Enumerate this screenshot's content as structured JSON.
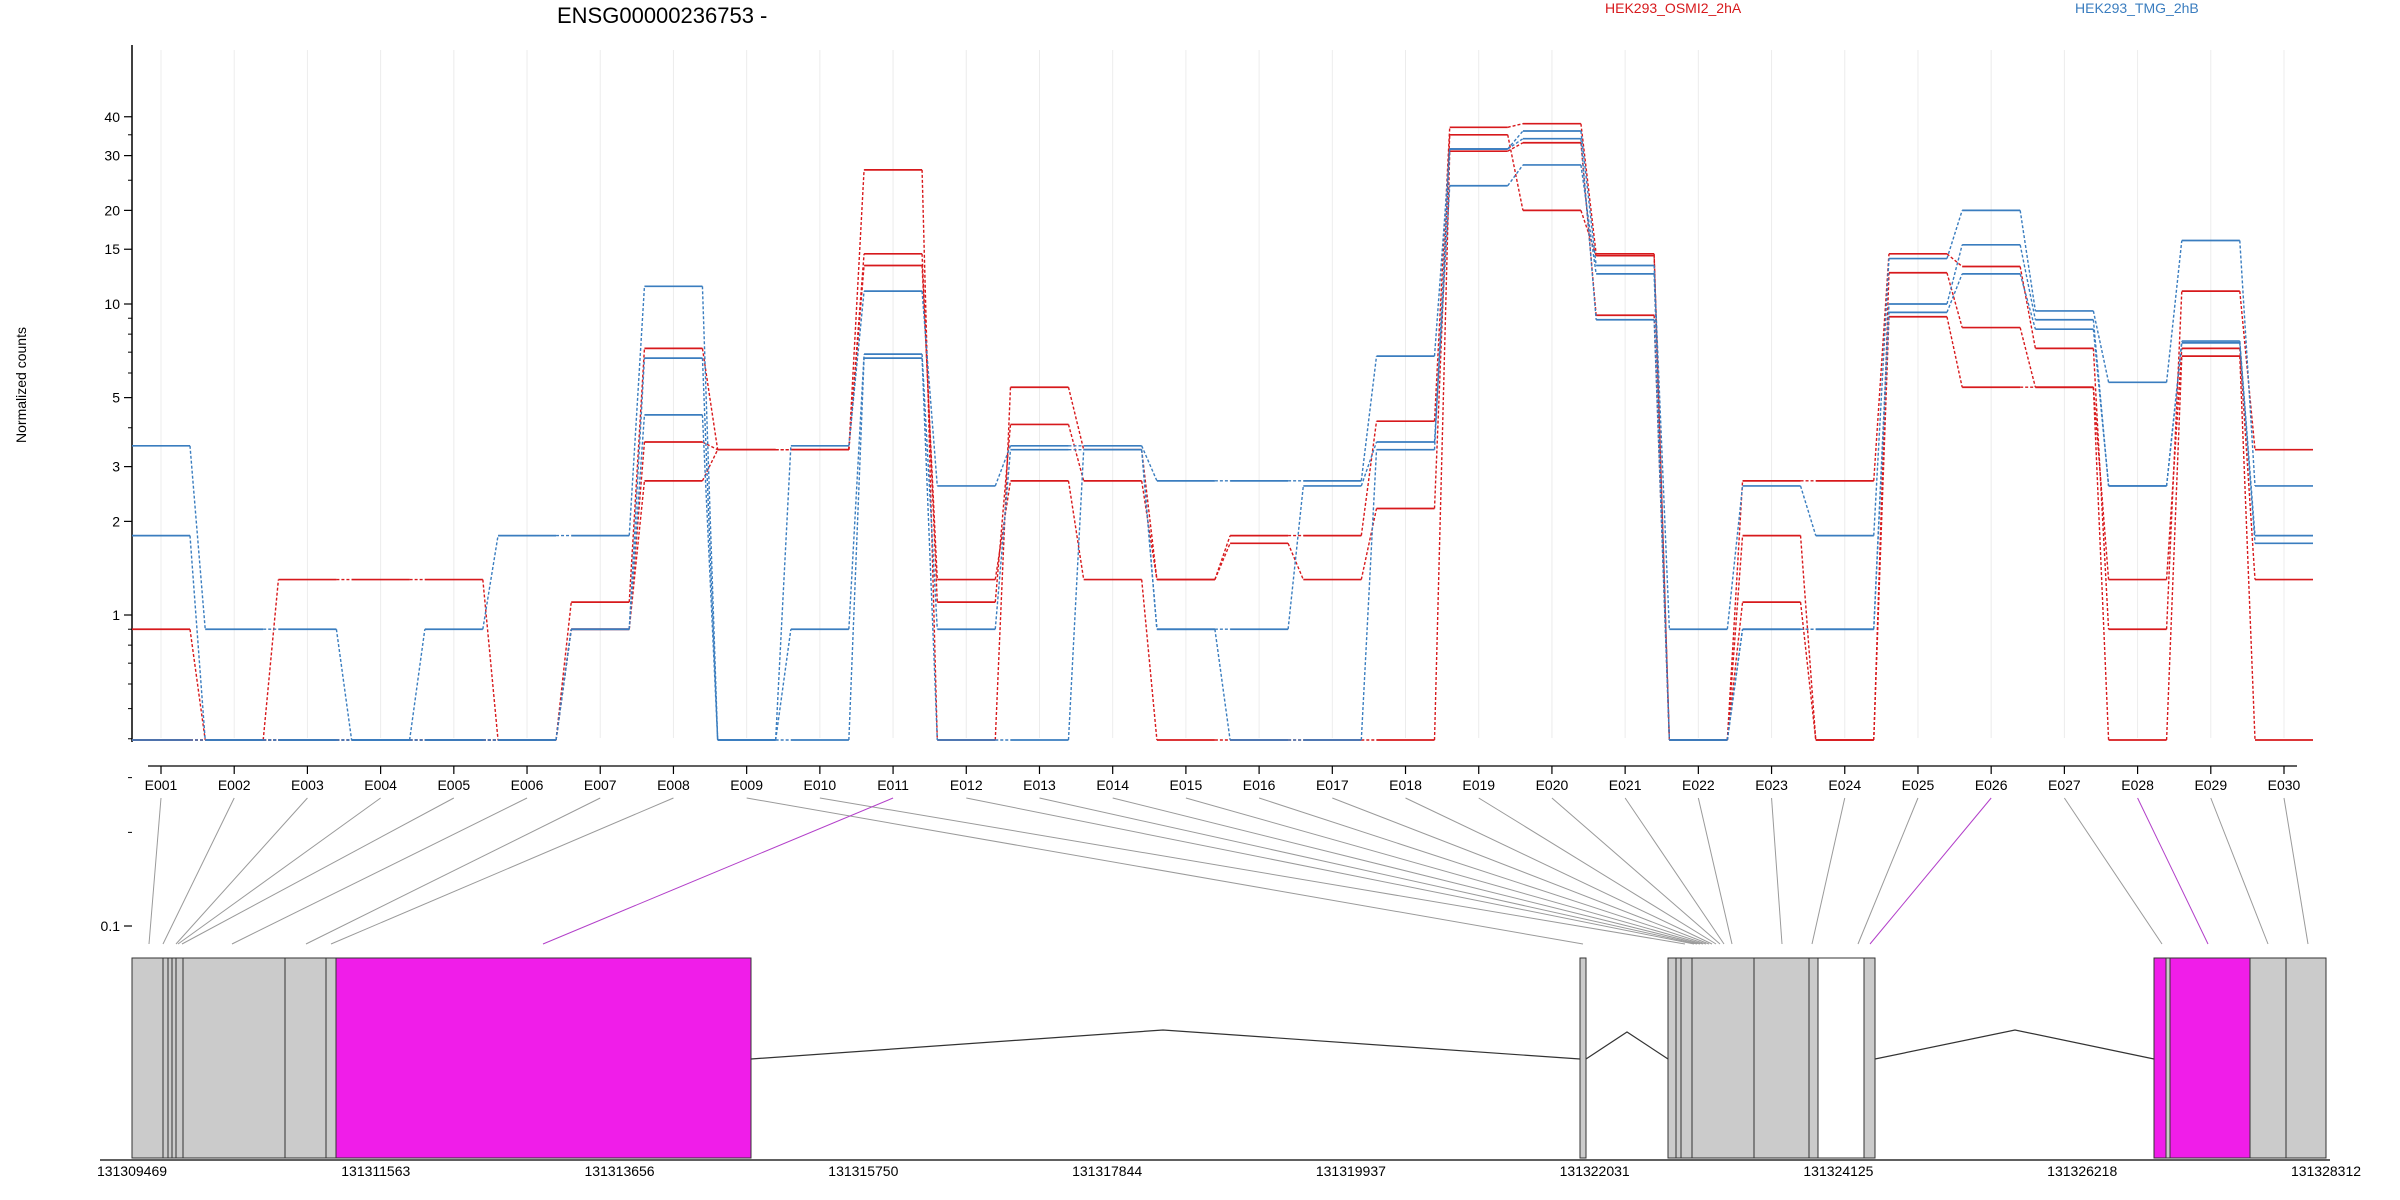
{
  "chart_data": {
    "type": "line",
    "title": "ENSG00000236753 -",
    "ylabel": "Normalized counts",
    "yscale": "log",
    "ylim": [
      0.08,
      45
    ],
    "yticks": [
      0.1,
      1,
      2,
      3,
      5,
      10,
      15,
      20,
      30,
      40
    ],
    "ytick_labels": [
      "0.1",
      "1",
      "2",
      "3",
      "5",
      "10",
      "15",
      "20",
      "30",
      "40"
    ],
    "categories": [
      "E001",
      "E002",
      "E003",
      "E004",
      "E005",
      "E006",
      "E007",
      "E008",
      "E009",
      "E010",
      "E011",
      "E012",
      "E013",
      "E014",
      "E015",
      "E016",
      "E017",
      "E018",
      "E019",
      "E020",
      "E021",
      "E022",
      "E023",
      "E024",
      "E025",
      "E026",
      "E027",
      "E028",
      "E029",
      "E030"
    ],
    "highlight_exons": [
      "E011",
      "E026",
      "E028"
    ],
    "legend": {
      "placement": "top",
      "entries": [
        {
          "name": "HEK293_OSMI2_2hA",
          "color": "#d7191c"
        },
        {
          "name": "HEK293_TMG_2hB",
          "color": "#3a7dbf"
        }
      ]
    },
    "series": [
      {
        "group": "HEK293_OSMI2_2hA",
        "color": "#d7191c",
        "values": [
          0.9,
          0.08,
          1.3,
          1.3,
          1.3,
          0.08,
          1.1,
          7.2,
          3.4,
          3.4,
          27,
          0.08,
          5.4,
          3.4,
          1.3,
          1.8,
          1.8,
          4.2,
          37,
          38,
          14.5,
          0.08,
          2.7,
          2.7,
          14.5,
          13.2,
          7.2,
          0.9,
          11,
          3.4
        ]
      },
      {
        "group": "HEK293_OSMI2_2hA",
        "color": "#d7191c",
        "values": [
          0.08,
          0.08,
          0.08,
          0.08,
          0.08,
          0.08,
          0.9,
          3.6,
          3.4,
          3.4,
          14.5,
          1.1,
          4.1,
          2.7,
          1.3,
          1.7,
          1.3,
          2.2,
          35,
          20,
          14.3,
          0.08,
          1.8,
          0.08,
          12.6,
          8.4,
          5.4,
          1.3,
          7.2,
          1.3
        ]
      },
      {
        "group": "HEK293_OSMI2_2hA",
        "color": "#d7191c",
        "values": [
          0.08,
          0.08,
          0.08,
          0.08,
          0.08,
          0.08,
          0.9,
          2.7,
          3.4,
          3.4,
          13.3,
          1.3,
          2.7,
          1.3,
          0.08,
          0.08,
          0.08,
          0.08,
          31,
          33,
          9.2,
          0.08,
          1.1,
          0.08,
          9.1,
          5.4,
          5.4,
          0.08,
          6.8,
          0.08
        ]
      },
      {
        "group": "HEK293_TMG_2hB",
        "color": "#3a7dbf",
        "values": [
          3.5,
          0.9,
          0.9,
          0.08,
          0.9,
          1.8,
          1.8,
          11.4,
          0.08,
          3.5,
          11,
          2.6,
          3.5,
          3.5,
          2.7,
          2.7,
          2.7,
          6.8,
          31.5,
          36,
          13.3,
          0.9,
          2.6,
          1.8,
          14,
          20,
          9.5,
          5.6,
          16,
          2.6
        ]
      },
      {
        "group": "HEK293_TMG_2hB",
        "color": "#3a7dbf",
        "values": [
          1.8,
          0.08,
          0.08,
          0.08,
          0.08,
          0.08,
          0.9,
          6.7,
          0.08,
          0.9,
          6.9,
          0.9,
          3.4,
          3.4,
          0.9,
          0.9,
          2.6,
          3.6,
          24,
          28,
          12.5,
          0.08,
          0.9,
          0.9,
          10,
          15.5,
          8.9,
          2.6,
          7.6,
          1.8
        ]
      },
      {
        "group": "HEK293_TMG_2hB",
        "color": "#3a7dbf",
        "values": [
          0.08,
          0.08,
          0.08,
          0.08,
          0.08,
          0.08,
          0.9,
          4.4,
          0.08,
          0.08,
          6.7,
          0.08,
          0.08,
          3.4,
          0.9,
          0.08,
          0.08,
          3.4,
          31.5,
          34,
          8.9,
          0.08,
          0.9,
          0.9,
          9.4,
          12.5,
          8.3,
          2.6,
          7.5,
          1.7
        ]
      }
    ],
    "gene_model": {
      "coordinate_labels": [
        "131309469",
        "131311563",
        "131313656",
        "131315750",
        "131317844",
        "131319937",
        "131322031",
        "131324125",
        "131326218",
        "131328312"
      ]
    }
  }
}
